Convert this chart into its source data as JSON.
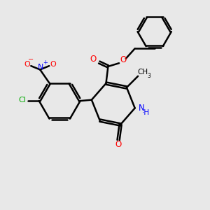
{
  "bg_color": "#e8e8e8",
  "bond_color": "#000000",
  "bond_width": 1.8,
  "figsize": [
    3.0,
    3.0
  ],
  "dpi": 100,
  "xlim": [
    0,
    10
  ],
  "ylim": [
    0,
    10
  ]
}
